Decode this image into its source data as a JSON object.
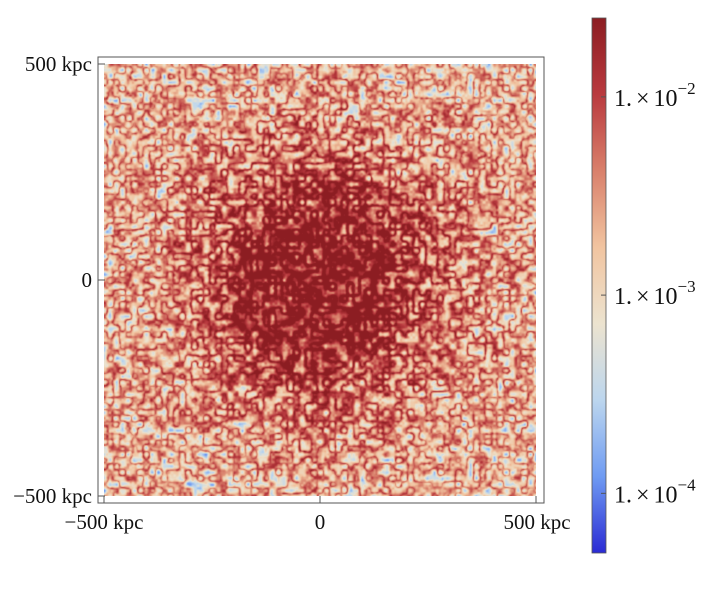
{
  "chart_data": {
    "type": "heatmap",
    "title": "",
    "xlabel": "",
    "ylabel": "",
    "x_ticks": [
      {
        "value": -500,
        "label": "−500 kpc"
      },
      {
        "value": 0,
        "label": "0"
      },
      {
        "value": 500,
        "label": "500 kpc"
      }
    ],
    "y_ticks": [
      {
        "value": 500,
        "label": "500 kpc"
      },
      {
        "value": 0,
        "label": "0"
      },
      {
        "value": -500,
        "label": "−500 kpc"
      }
    ],
    "xlim": [
      -500,
      500
    ],
    "ylim": [
      -500,
      500
    ],
    "field": {
      "description": "turbulent speckled map, high values concentrated in central disk",
      "peak_value": 0.015,
      "edge_value": 0.0008,
      "central_radius": 270
    },
    "colorbar": {
      "scale": "log",
      "range": [
        5e-05,
        0.025
      ],
      "ticks": [
        {
          "value": 0.0001,
          "mantissa": "1.",
          "base": "10",
          "exponent": "−4"
        },
        {
          "value": 0.001,
          "mantissa": "1.",
          "base": "10",
          "exponent": "−3"
        },
        {
          "value": 0.01,
          "mantissa": "1.",
          "base": "10",
          "exponent": "−2"
        }
      ],
      "colors": [
        "#2b2bd4",
        "#6f9bf2",
        "#bcd6ee",
        "#ece3cf",
        "#f1c4a0",
        "#d9806b",
        "#b93a3f",
        "#8c1d22"
      ]
    },
    "grid": false
  }
}
